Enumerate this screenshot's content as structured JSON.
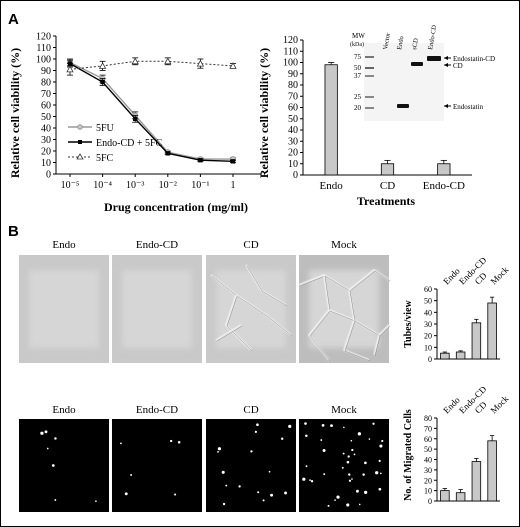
{
  "panel_labels": {
    "a": "A",
    "b": "B"
  },
  "colors": {
    "bar_fill": "#c8c8c8",
    "line_5fu": "#999999",
    "line_endocd": "#000000",
    "line_5fc": "#333333"
  },
  "chart_data": [
    {
      "type": "line",
      "xlabel": "Drug concentration (mg/ml)",
      "ylabel": "Relative cell viability (%)",
      "x_scale": "log",
      "x": [
        1e-05,
        0.0001,
        0.001,
        0.01,
        0.1,
        1
      ],
      "x_ticks": [
        "10⁻⁵",
        "10⁻⁴",
        "10⁻³",
        "10⁻²",
        "10⁻¹",
        "1"
      ],
      "ylim": [
        0,
        120
      ],
      "y_ticks": [
        "0",
        "10",
        "20",
        "30",
        "40",
        "50",
        "60",
        "70",
        "80",
        "90",
        "100",
        "110",
        "120"
      ],
      "grid": false,
      "legend_position": "bottom-left",
      "series": [
        {
          "name": "5FU",
          "values": [
            97,
            83,
            51,
            19,
            13,
            13
          ],
          "errors": [
            3,
            3,
            3,
            1,
            1,
            1
          ],
          "style": "solid-gray",
          "marker": "circle"
        },
        {
          "name": "Endo-CD + 5FC",
          "values": [
            96,
            80,
            48,
            18,
            12,
            11
          ],
          "errors": [
            3,
            3,
            3,
            1,
            1,
            1
          ],
          "style": "solid-black",
          "marker": "square"
        },
        {
          "name": "5FC",
          "values": [
            91,
            94,
            98,
            98,
            96,
            94
          ],
          "errors": [
            5,
            4,
            3,
            3,
            4,
            2
          ],
          "style": "dotted",
          "marker": "triangle"
        }
      ]
    },
    {
      "type": "bar",
      "xlabel": "Treatments",
      "ylabel": "Relative cell viability (%)",
      "categories": [
        "Endo",
        "CD",
        "Endo-CD"
      ],
      "values": [
        98,
        10,
        10
      ],
      "errors": [
        2,
        3,
        3
      ],
      "ylim": [
        0,
        120
      ],
      "y_ticks": [
        "0",
        "10",
        "20",
        "30",
        "40",
        "50",
        "60",
        "70",
        "80",
        "90",
        "100",
        "110",
        "120"
      ]
    },
    {
      "type": "bar",
      "ylabel": "Tubes/view",
      "categories": [
        "Endo",
        "Endo-CD",
        "CD",
        "Mock"
      ],
      "values": [
        5,
        6,
        31,
        48
      ],
      "errors": [
        1,
        1,
        3,
        5
      ],
      "ylim": [
        0,
        60
      ],
      "y_ticks": [
        "0",
        "10",
        "20",
        "30",
        "40",
        "50",
        "60"
      ]
    },
    {
      "type": "bar",
      "ylabel": "No. of Migrated Cells",
      "categories": [
        "Endo",
        "Endo-CD",
        "CD",
        "Mock"
      ],
      "values": [
        10,
        8,
        38,
        58
      ],
      "errors": [
        2,
        3,
        3,
        5
      ],
      "ylim": [
        0,
        80
      ],
      "y_ticks": [
        "0",
        "10",
        "20",
        "30",
        "40",
        "50",
        "60",
        "70",
        "80"
      ]
    }
  ],
  "western_blot": {
    "mw_label": "MW",
    "mw_unit": "(kDa)",
    "lanes": [
      "Vector",
      "Endo",
      "sCD",
      "Endo-CD"
    ],
    "markers": [
      "75",
      "50",
      "37",
      "25",
      "20"
    ],
    "band_labels": [
      "Endostatin-CD",
      "CD",
      "Endostatin"
    ]
  },
  "micrograph_rows": [
    {
      "labels": [
        "Endo",
        "Endo-CD",
        "CD",
        "Mock"
      ]
    },
    {
      "labels": [
        "Endo",
        "Endo-CD",
        "CD",
        "Mock"
      ]
    }
  ]
}
